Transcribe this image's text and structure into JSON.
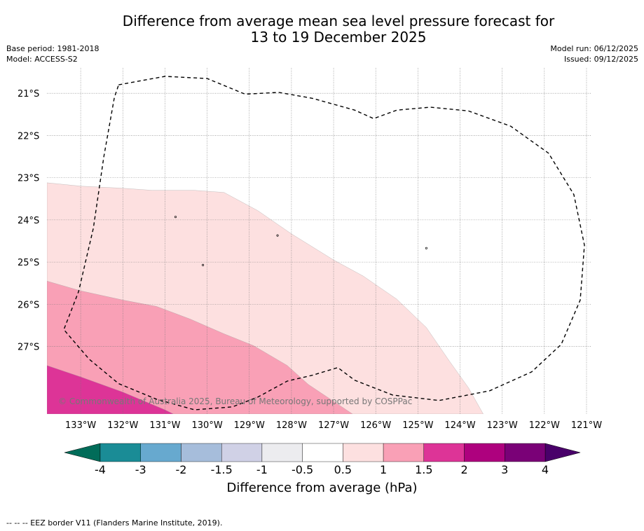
{
  "title": {
    "line1": "Difference from average mean sea level pressure forecast for",
    "line2": "13 to 19 December 2025"
  },
  "meta": {
    "base_period": "Base period: 1981-2018",
    "model": "Model: ACCESS-S2",
    "model_run": "Model run: 06/12/2025",
    "issued": "Issued: 09/12/2025"
  },
  "map": {
    "lat_labels": [
      "21°S",
      "22°S",
      "23°S",
      "24°S",
      "25°S",
      "26°S",
      "27°S"
    ],
    "lat_values": [
      -21,
      -22,
      -23,
      -24,
      -25,
      -26,
      -27
    ],
    "lon_labels": [
      "133°W",
      "132°W",
      "131°W",
      "130°W",
      "129°W",
      "128°W",
      "127°W",
      "126°W",
      "125°W",
      "124°W",
      "123°W",
      "122°W",
      "121°W"
    ],
    "lon_values": [
      -133,
      -132,
      -131,
      -130,
      -129,
      -128,
      -127,
      -126,
      -125,
      -124,
      -123,
      -122,
      -121
    ],
    "extent": {
      "lon_min": -133.8,
      "lon_max": -120.9,
      "lat_min": -28.6,
      "lat_max": -20.4
    },
    "copyright": "© Commonwealth of Australia 2025, Bureau of Meteorology, supported by COSPPac",
    "regions": [
      {
        "name": "anomaly-0.5-to-1",
        "range": "0.5 to 1",
        "color": "#fde0e0",
        "boundary": [
          [
            -133.8,
            -23.12
          ],
          [
            -133,
            -23.2
          ],
          [
            -132,
            -23.25
          ],
          [
            -131.3,
            -23.3
          ],
          [
            -130.3,
            -23.3
          ],
          [
            -129.6,
            -23.35
          ],
          [
            -128.8,
            -23.78
          ],
          [
            -128,
            -24.33
          ],
          [
            -127,
            -24.95
          ],
          [
            -126.3,
            -25.33
          ],
          [
            -125.5,
            -25.88
          ],
          [
            -124.8,
            -26.55
          ],
          [
            -124.25,
            -27.35
          ],
          [
            -123.8,
            -27.98
          ],
          [
            -123.45,
            -28.6
          ]
        ]
      },
      {
        "name": "anomaly-1-to-1.5",
        "range": "1 to 1.5",
        "color": "#f9a0b6",
        "boundary": [
          [
            -133.8,
            -25.45
          ],
          [
            -133,
            -25.68
          ],
          [
            -132,
            -25.9
          ],
          [
            -131.2,
            -26.05
          ],
          [
            -130.4,
            -26.35
          ],
          [
            -129.6,
            -26.7
          ],
          [
            -128.9,
            -26.98
          ],
          [
            -128.1,
            -27.45
          ],
          [
            -127.6,
            -27.9
          ],
          [
            -127,
            -28.3
          ],
          [
            -126.55,
            -28.6
          ]
        ]
      },
      {
        "name": "anomaly-1.5-to-2",
        "range": "1.5 to 2",
        "color": "#dd3497",
        "boundary": [
          [
            -133.8,
            -27.45
          ],
          [
            -133,
            -27.72
          ],
          [
            -132,
            -28.08
          ],
          [
            -131,
            -28.5
          ],
          [
            -130.8,
            -28.6
          ]
        ]
      }
    ],
    "eez_border": [
      [
        -132.1,
        -20.8
      ],
      [
        -131,
        -20.6
      ],
      [
        -130,
        -20.65
      ],
      [
        -129.1,
        -21.02
      ],
      [
        -128.3,
        -20.98
      ],
      [
        -127.5,
        -21.12
      ],
      [
        -126.5,
        -21.4
      ],
      [
        -126.05,
        -21.6
      ],
      [
        -125.5,
        -21.4
      ],
      [
        -124.7,
        -21.33
      ],
      [
        -123.8,
        -21.42
      ],
      [
        -122.8,
        -21.78
      ],
      [
        -121.9,
        -22.42
      ],
      [
        -121.3,
        -23.4
      ],
      [
        -121.05,
        -24.6
      ],
      [
        -121.15,
        -25.9
      ],
      [
        -121.6,
        -26.95
      ],
      [
        -122.3,
        -27.6
      ],
      [
        -123.3,
        -28.05
      ],
      [
        -124.5,
        -28.28
      ],
      [
        -125.6,
        -28.15
      ],
      [
        -126.5,
        -27.8
      ],
      [
        -126.9,
        -27.5
      ],
      [
        -127.5,
        -27.68
      ],
      [
        -128.1,
        -27.82
      ],
      [
        -128.8,
        -28.2
      ],
      [
        -129.4,
        -28.43
      ],
      [
        -130.3,
        -28.5
      ],
      [
        -131.2,
        -28.25
      ],
      [
        -132.1,
        -27.88
      ],
      [
        -132.8,
        -27.3
      ],
      [
        -133.4,
        -26.6
      ],
      [
        -133.05,
        -25.7
      ],
      [
        -132.7,
        -24.2
      ],
      [
        -132.45,
        -22.5
      ],
      [
        -132.2,
        -21.1
      ],
      [
        -132.1,
        -20.8
      ]
    ],
    "islands": [
      [
        -130.75,
        -23.93
      ],
      [
        -128.33,
        -24.37
      ],
      [
        -124.8,
        -24.67
      ],
      [
        -130.1,
        -25.07
      ]
    ]
  },
  "colorbar": {
    "ticks": [
      "-4",
      "-3",
      "-2",
      "-1.5",
      "-1",
      "-0.5",
      "0.5",
      "1",
      "1.5",
      "2",
      "3",
      "4"
    ],
    "colors": [
      "#1a8c96",
      "#67a9cf",
      "#a6bddb",
      "#d0d1e6",
      "#ececef",
      "#ffffff",
      "#fde0e0",
      "#f9a0b6",
      "#dd3497",
      "#ae017e",
      "#7a0177"
    ],
    "under_color": "#016c59",
    "over_color": "#49006a",
    "label": "Difference from average (hPa)"
  },
  "footer": {
    "legend_text": "--  --  -- EEZ border V11 (Flanders Marine Institute, 2019)."
  }
}
